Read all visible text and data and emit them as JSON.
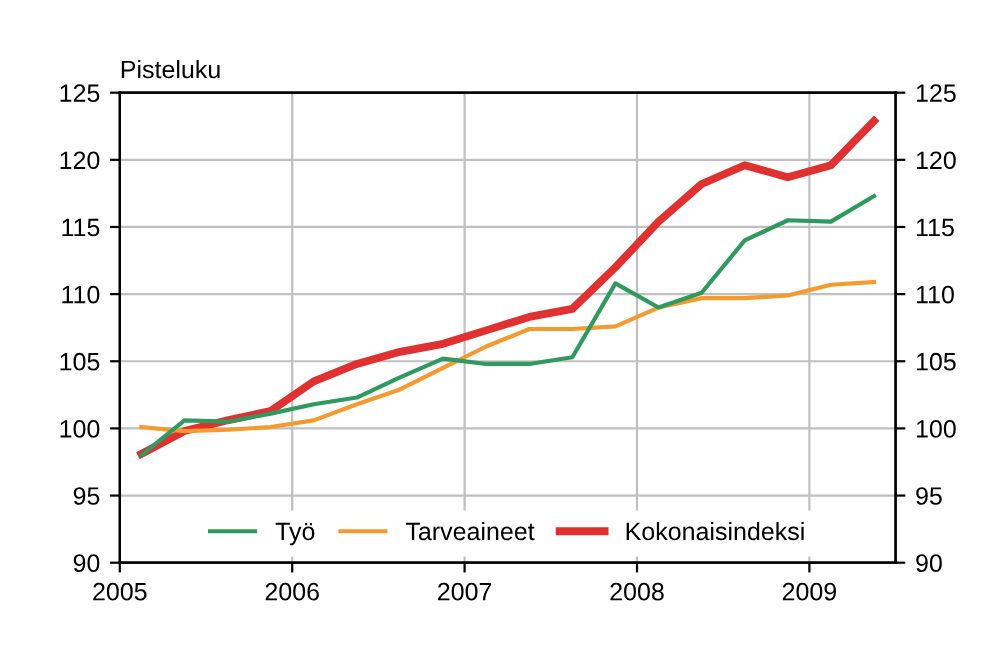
{
  "chart_data": {
    "type": "line",
    "ylabel": "Pisteluku",
    "x": [
      2005.125,
      2005.375,
      2005.625,
      2005.875,
      2006.125,
      2006.375,
      2006.625,
      2006.875,
      2007.125,
      2007.375,
      2007.625,
      2007.875,
      2008.125,
      2008.375,
      2008.625,
      2008.875,
      2009.125,
      2009.375
    ],
    "series": [
      {
        "name": "Työ",
        "color": "#2e9a5e",
        "values": [
          98.0,
          100.6,
          100.5,
          101.1,
          101.8,
          102.3,
          103.8,
          105.2,
          104.8,
          104.8,
          105.3,
          110.8,
          109.0,
          110.1,
          114.0,
          115.5,
          115.4,
          117.3
        ]
      },
      {
        "name": "Tarveaineet",
        "color": "#f59a2e",
        "values": [
          100.1,
          99.8,
          99.9,
          100.1,
          100.6,
          101.8,
          102.9,
          104.5,
          106.1,
          107.4,
          107.4,
          107.6,
          109.0,
          109.7,
          109.7,
          109.9,
          110.7,
          110.9
        ]
      },
      {
        "name": "Kokonaisindeksi",
        "color": "#e03030",
        "values": [
          98.1,
          99.8,
          100.6,
          101.3,
          103.5,
          104.8,
          105.7,
          106.3,
          107.3,
          108.3,
          108.9,
          112.0,
          115.4,
          118.2,
          119.6,
          118.7,
          119.6,
          122.9
        ]
      }
    ],
    "xlim": [
      2005,
      2009.5
    ],
    "xticks": [
      2005,
      2006,
      2007,
      2008,
      2009
    ],
    "ylim": [
      90,
      125
    ],
    "yticks": [
      90,
      95,
      100,
      105,
      110,
      115,
      120,
      125
    ],
    "y2lim": [
      90,
      125
    ],
    "y2ticks": [
      90,
      95,
      100,
      105,
      110,
      115,
      120,
      125
    ],
    "grid": true,
    "legend": "bottom",
    "line_style": "solid"
  }
}
